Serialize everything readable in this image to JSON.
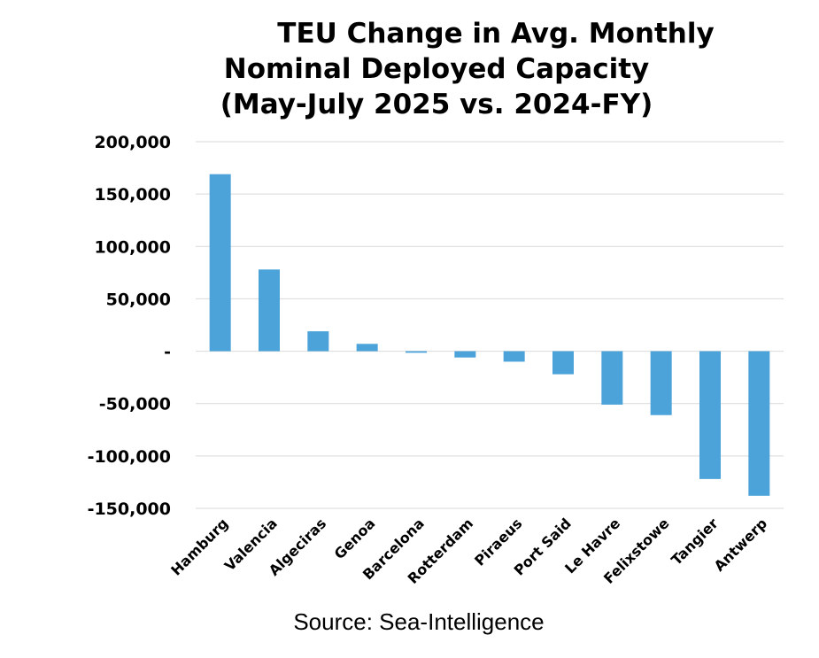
{
  "chart_data": {
    "type": "bar",
    "title_lines": [
      "TEU Change in Avg. Monthly",
      "Nominal Deployed Capacity",
      "(May-July 2025 vs. 2024-FY)"
    ],
    "categories": [
      "Hamburg",
      "Valencia",
      "Algeciras",
      "Genoa",
      "Barcelona",
      "Rotterdam",
      "Piraeus",
      "Port Said",
      "Le Havre",
      "Felixstowe",
      "Tangier",
      "Antwerp"
    ],
    "values": [
      169000,
      78000,
      19000,
      7000,
      -1500,
      -6000,
      -10000,
      -22000,
      -51000,
      -61000,
      -122000,
      -138000
    ],
    "ylim": [
      -150000,
      200000
    ],
    "yticks": [
      200000,
      150000,
      100000,
      50000,
      0,
      -50000,
      -100000,
      -150000
    ],
    "ytick_labels": [
      "200,000",
      "150,000",
      "100,000",
      "50,000",
      "-",
      "-50,000",
      "-100,000",
      "-150,000"
    ],
    "bar_color": "#4ba3d9",
    "grid": true,
    "legend": "none"
  },
  "source": "Source: Sea-Intelligence"
}
